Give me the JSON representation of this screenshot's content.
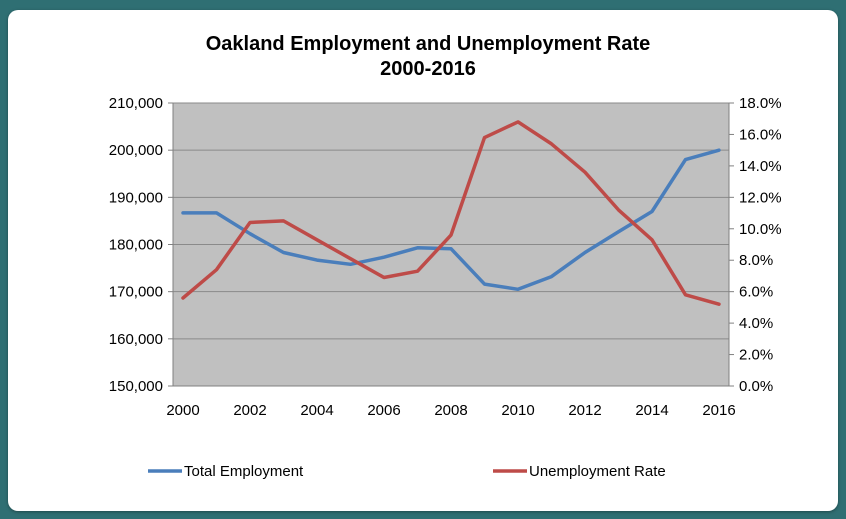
{
  "chart_data": {
    "type": "line",
    "title_line1": "Oakland Employment and Unemployment Rate",
    "title_line2": "2000-2016",
    "x": [
      2000,
      2001,
      2002,
      2003,
      2004,
      2005,
      2006,
      2007,
      2008,
      2009,
      2010,
      2011,
      2012,
      2013,
      2014,
      2015,
      2016
    ],
    "x_tick_labels": [
      "2000",
      "2002",
      "2004",
      "2006",
      "2008",
      "2010",
      "2012",
      "2014",
      "2016"
    ],
    "y_left_ticks": [
      "210,000",
      "200,000",
      "190,000",
      "180,000",
      "170,000",
      "160,000",
      "150,000"
    ],
    "y_right_ticks": [
      "18.0%",
      "16.0%",
      "14.0%",
      "12.0%",
      "10.0%",
      "8.0%",
      "6.0%",
      "4.0%",
      "2.0%",
      "0.0%"
    ],
    "ylim_left": [
      150000,
      210000
    ],
    "ylim_right": [
      0,
      18
    ],
    "grid": true,
    "plot_background": "#c0c0c0",
    "legend_placement": "bottom",
    "series": [
      {
        "name": "Total Employment",
        "axis": "left",
        "color": "#4a7ebb",
        "values": [
          186700,
          186700,
          182300,
          178300,
          176700,
          175800,
          177300,
          179300,
          179100,
          171600,
          170500,
          173200,
          178300,
          182700,
          187000,
          198000,
          200000
        ]
      },
      {
        "name": "Unemployment Rate",
        "axis": "right",
        "color": "#be4b48",
        "values": [
          5.6,
          7.4,
          10.4,
          10.5,
          9.3,
          8.1,
          6.9,
          7.3,
          9.6,
          15.8,
          16.8,
          15.4,
          13.6,
          11.2,
          9.3,
          5.8,
          5.2
        ]
      }
    ]
  }
}
